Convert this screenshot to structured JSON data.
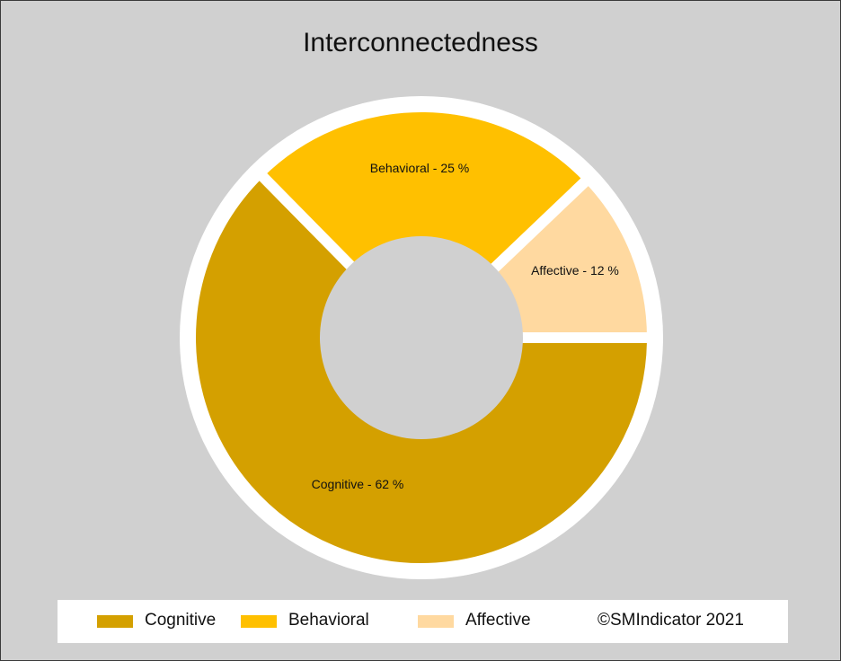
{
  "chart_data": {
    "type": "pie",
    "subtype": "donut",
    "title": "Interconnectedness",
    "slices": [
      {
        "name": "Cognitive",
        "value": 62,
        "label": "Cognitive - 62 %",
        "color": "#d4a000"
      },
      {
        "name": "Behavioral",
        "value": 25,
        "label": "Behavioral - 25 %",
        "color": "#ffc000"
      },
      {
        "name": "Affective",
        "value": 12,
        "label": "Affective - 12 %",
        "color": "#ffd9a0"
      }
    ],
    "legend": {
      "placement": "bottom",
      "entries": [
        "Cognitive",
        "Behavioral",
        "Affective"
      ]
    },
    "copyright": "©SMIndicator 2021"
  },
  "colors": {
    "background": "#d0d0d0",
    "separator": "#ffffff"
  }
}
